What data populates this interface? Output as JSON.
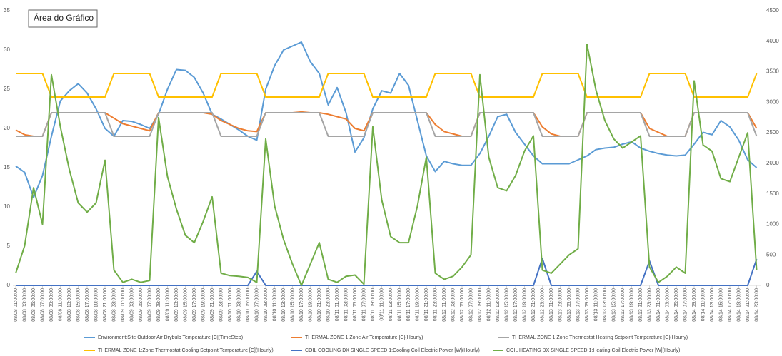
{
  "tooltip": "Área do Gráfico",
  "chart_data": {
    "type": "line",
    "categories": [
      "08/08 01:00:00",
      "08/08 03:00:00",
      "08/08 05:00:00",
      "08/08 07:00:00",
      "08/08 09:00:00",
      "08/08 11:00:00",
      "08/08 13:00:00",
      "08/08 15:00:00",
      "08/08 17:00:00",
      "08/08 19:00:00",
      "08/08 21:00:00",
      "08/08 23:00:00",
      "08/09 01:00:00",
      "08/09 03:00:00",
      "08/09 05:00:00",
      "08/09 07:00:00",
      "08/09 09:00:00",
      "08/09 11:00:00",
      "08/09 13:00:00",
      "08/09 15:00:00",
      "08/09 17:00:00",
      "08/09 19:00:00",
      "08/09 21:00:00",
      "08/09 23:00:00",
      "08/10 01:00:00",
      "08/10 03:00:00",
      "08/10 05:00:00",
      "08/10 07:00:00",
      "08/10 09:00:00",
      "08/10 11:00:00",
      "08/10 13:00:00",
      "08/10 15:00:00",
      "08/10 17:00:00",
      "08/10 19:00:00",
      "08/10 21:00:00",
      "08/10 23:00:00",
      "08/11 01:00:00",
      "08/11 03:00:00",
      "08/11 05:00:00",
      "08/11 07:00:00",
      "08/11 09:00:00",
      "08/11 11:00:00",
      "08/11 13:00:00",
      "08/11 15:00:00",
      "08/11 17:00:00",
      "08/11 19:00:00",
      "08/11 21:00:00",
      "08/11 23:00:00",
      "08/12 01:00:00",
      "08/12 03:00:00",
      "08/12 05:00:00",
      "08/12 07:00:00",
      "08/12 09:00:00",
      "08/12 11:00:00",
      "08/12 13:00:00",
      "08/12 15:00:00",
      "08/12 17:00:00",
      "08/12 19:00:00",
      "08/12 21:00:00",
      "08/12 23:00:00",
      "08/13 01:00:00",
      "08/13 03:00:00",
      "08/13 05:00:00",
      "08/13 07:00:00",
      "08/13 09:00:00",
      "08/13 11:00:00",
      "08/13 13:00:00",
      "08/13 15:00:00",
      "08/13 17:00:00",
      "08/13 19:00:00",
      "08/13 21:00:00",
      "08/13 23:00:00",
      "08/14 01:00:00",
      "08/14 03:00:00",
      "08/14 05:00:00",
      "08/14 07:00:00",
      "08/14 09:00:00",
      "08/14 11:00:00",
      "08/14 13:00:00",
      "08/14 15:00:00",
      "08/14 17:00:00",
      "08/14 19:00:00",
      "08/14 21:00:00",
      "08/14 23:00:00"
    ],
    "series": [
      {
        "name": "Environment:Site Outdoor Air Drybulb Temperature [C](TimeStep)",
        "color": "#5b9bd5",
        "axis": "y",
        "values": [
          15.2,
          14.4,
          11.2,
          14,
          19,
          23.5,
          24.8,
          25.7,
          24.5,
          22.5,
          20,
          19,
          21,
          20.9,
          20.5,
          20,
          21.8,
          25,
          27.5,
          27.4,
          26.5,
          24.5,
          21.8,
          21.2,
          20.5,
          19.8,
          19,
          18.5,
          25,
          28,
          30,
          30.5,
          31,
          28.5,
          27,
          23,
          25.2,
          22,
          17,
          18.8,
          22.5,
          24.8,
          24.5,
          27,
          25.5,
          21,
          16.5,
          14.5,
          15.8,
          15.5,
          15.3,
          15.3,
          16.8,
          19,
          21.5,
          21.8,
          19.5,
          18,
          16.5,
          15.5,
          15.5,
          15.5,
          15.5,
          16,
          16.5,
          17.3,
          17.5,
          17.6,
          18,
          18.3,
          17.5,
          17.1,
          16.8,
          16.6,
          16.5,
          16.6,
          18,
          19.5,
          19.2,
          21,
          20.2,
          18.5,
          16,
          15
        ]
      },
      {
        "name": "THERMAL ZONE 1:Zone Air Temperature [C](Hourly)",
        "color": "#ed7d31",
        "axis": "y",
        "values": [
          19.8,
          19.2,
          19,
          19,
          22,
          22,
          22,
          22,
          22,
          22,
          22,
          21.3,
          20.6,
          20.3,
          20,
          19.7,
          22,
          22,
          22,
          22,
          22,
          22,
          21.8,
          21,
          20.5,
          20,
          19.7,
          19.6,
          22,
          22,
          22,
          22,
          22.1,
          22,
          22,
          21.8,
          21.5,
          21.2,
          20,
          19.7,
          22,
          22,
          22,
          22,
          22,
          22,
          22,
          20.5,
          19.6,
          19.3,
          19,
          19,
          22,
          22,
          22,
          22,
          22,
          22,
          22,
          20.2,
          19.3,
          19,
          19,
          19,
          22,
          22,
          22,
          22,
          22,
          22,
          22,
          20,
          19.5,
          19,
          19,
          19,
          22,
          22,
          22,
          22,
          22,
          22,
          22,
          20
        ]
      },
      {
        "name": "THERMAL ZONE 1:Zone Thermostat Heating Setpoint Temperature [C](Hourly)",
        "color": "#a5a5a5",
        "axis": "y",
        "values": [
          19,
          19,
          19,
          19,
          22,
          22,
          22,
          22,
          22,
          22,
          22,
          19,
          19,
          19,
          19,
          19,
          22,
          22,
          22,
          22,
          22,
          22,
          22,
          19,
          19,
          19,
          19,
          19,
          22,
          22,
          22,
          22,
          22,
          22,
          22,
          19,
          19,
          19,
          19,
          19,
          22,
          22,
          22,
          22,
          22,
          22,
          22,
          19,
          19,
          19,
          19,
          19,
          22,
          22,
          22,
          22,
          22,
          22,
          22,
          19,
          19,
          19,
          19,
          19,
          22,
          22,
          22,
          22,
          22,
          22,
          22,
          19,
          19,
          19,
          19,
          19,
          22,
          22,
          22,
          22,
          22,
          22,
          22,
          19
        ]
      },
      {
        "name": "THERMAL ZONE 1:Zone Thermostat Cooling Setpoint Temperature [C](Hourly)",
        "color": "#ffc000",
        "axis": "y",
        "values": [
          27,
          27,
          27,
          27,
          24,
          24,
          24,
          24,
          24,
          24,
          24,
          27,
          27,
          27,
          27,
          27,
          24,
          24,
          24,
          24,
          24,
          24,
          24,
          27,
          27,
          27,
          27,
          27,
          24,
          24,
          24,
          24,
          24,
          24,
          24,
          27,
          27,
          27,
          27,
          27,
          24,
          24,
          24,
          24,
          24,
          24,
          24,
          27,
          27,
          27,
          27,
          27,
          24,
          24,
          24,
          24,
          24,
          24,
          24,
          27,
          27,
          27,
          27,
          27,
          24,
          24,
          24,
          24,
          24,
          24,
          24,
          27,
          27,
          27,
          27,
          27,
          24,
          24,
          24,
          24,
          24,
          24,
          24,
          27
        ]
      },
      {
        "name": "COIL COOLING DX SINGLE SPEED 1:Cooling Coil Electric Power [W](Hourly)",
        "color": "#4472c4",
        "axis": "y2",
        "values": [
          0,
          0,
          0,
          0,
          0,
          0,
          0,
          0,
          0,
          0,
          0,
          0,
          0,
          0,
          0,
          0,
          0,
          0,
          0,
          0,
          0,
          0,
          0,
          0,
          0,
          0,
          0,
          230,
          0,
          0,
          0,
          0,
          0,
          0,
          0,
          0,
          0,
          0,
          0,
          0,
          0,
          0,
          0,
          0,
          0,
          0,
          0,
          0,
          0,
          0,
          0,
          0,
          0,
          0,
          0,
          0,
          0,
          0,
          0,
          440,
          0,
          0,
          0,
          0,
          0,
          0,
          0,
          0,
          0,
          0,
          0,
          400,
          0,
          0,
          0,
          0,
          0,
          0,
          0,
          0,
          0,
          0,
          0,
          430
        ]
      },
      {
        "name": "COIL HEATING DX SINGLE SPEED 1:Heating Coil Electric Power [W](Hourly)",
        "color": "#70ad47",
        "axis": "y2",
        "values": [
          200,
          650,
          1600,
          1000,
          3450,
          2600,
          1900,
          1350,
          1200,
          1350,
          2050,
          250,
          50,
          100,
          50,
          80,
          2750,
          1780,
          1250,
          820,
          700,
          1050,
          1450,
          200,
          160,
          150,
          130,
          50,
          2400,
          1300,
          750,
          350,
          0,
          350,
          700,
          100,
          50,
          150,
          170,
          20,
          2600,
          1400,
          800,
          700,
          700,
          1300,
          2100,
          200,
          100,
          150,
          300,
          500,
          3450,
          2100,
          1600,
          1550,
          1800,
          2200,
          2450,
          250,
          200,
          350,
          500,
          600,
          3950,
          3200,
          2700,
          2400,
          2250,
          2350,
          2450,
          300,
          50,
          150,
          300,
          200,
          3350,
          2300,
          2200,
          1750,
          1700,
          2100,
          2500,
          250
        ]
      }
    ],
    "ylim": [
      0,
      35
    ],
    "yticks": [
      0,
      5,
      10,
      15,
      20,
      25,
      30,
      35
    ],
    "y2lim": [
      0,
      4500
    ],
    "y2ticks": [
      0,
      500,
      1000,
      1500,
      2000,
      2500,
      3000,
      3500,
      4000,
      4500
    ],
    "grid": false
  }
}
